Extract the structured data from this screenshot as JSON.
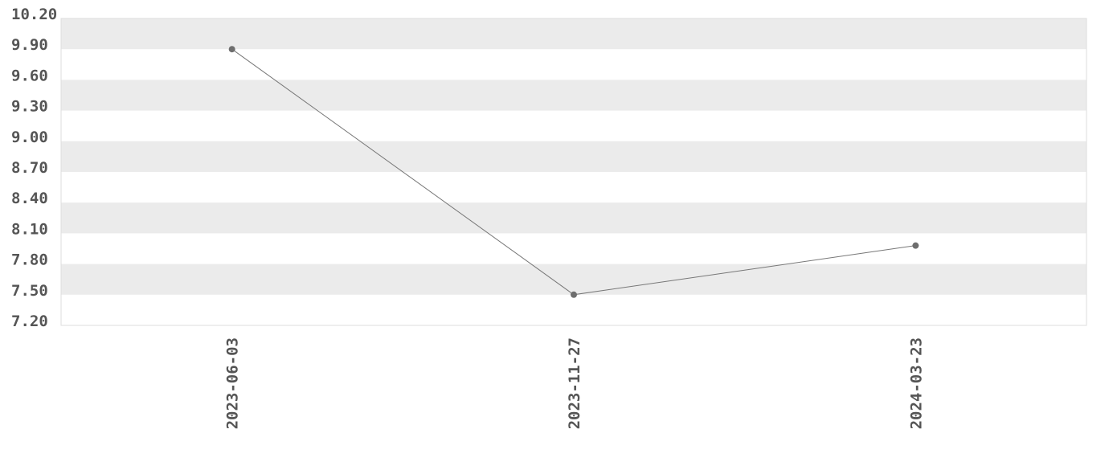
{
  "chart_data": {
    "type": "line",
    "categories": [
      "2023-06-03",
      "2023-11-27",
      "2024-03-23"
    ],
    "values": [
      9.9,
      7.5,
      7.98
    ],
    "title": "",
    "xlabel": "",
    "ylabel": "",
    "ylim": [
      7.2,
      10.2
    ],
    "yticks": [
      "7.20",
      "7.50",
      "7.80",
      "8.10",
      "8.40",
      "8.70",
      "9.00",
      "9.30",
      "9.60",
      "9.90",
      "10.20"
    ],
    "grid": "alternating horizontal bands",
    "legend": "none",
    "colors": {
      "line": "#777777",
      "marker": "#6e6e6e",
      "band": "#ebebeb",
      "text": "#555555",
      "border": "#dddddd"
    }
  }
}
